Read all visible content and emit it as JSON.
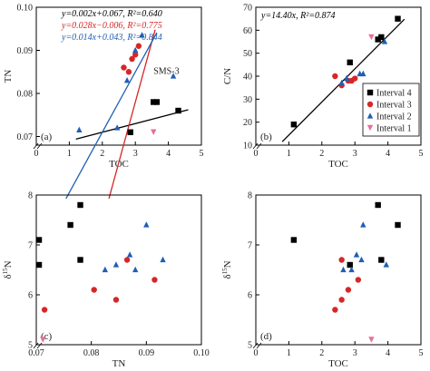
{
  "chart_data": [
    {
      "id": "a",
      "type": "scatter",
      "panel_label": "(a)",
      "xlabel": "TOC",
      "ylabel": "TN",
      "xlim": [
        0,
        5
      ],
      "ylim": [
        0.068,
        0.1
      ],
      "xticks": [
        "0",
        "1",
        "2",
        "3",
        "4",
        "5"
      ],
      "yticks": [
        "0.07",
        "0.08",
        "0.09",
        "0.10"
      ],
      "ytick_values": [
        0.07,
        0.08,
        0.09,
        0.1
      ],
      "annotation": "SMS-3",
      "series": [
        {
          "marker": "square",
          "color": "#000000",
          "x": [
            2.85,
            3.55,
            3.65,
            4.3
          ],
          "y": [
            0.071,
            0.078,
            0.078,
            0.076
          ]
        },
        {
          "marker": "circle",
          "color": "#d62728",
          "x": [
            2.65,
            2.8,
            2.9,
            3.0,
            3.1
          ],
          "y": [
            0.086,
            0.085,
            0.088,
            0.089,
            0.091
          ]
        },
        {
          "marker": "triangle",
          "color": "#1f5fb4",
          "x": [
            1.3,
            2.45,
            2.75,
            3.0,
            3.2,
            4.15
          ],
          "y": [
            0.0715,
            0.072,
            0.083,
            0.09,
            0.0935,
            0.084
          ]
        },
        {
          "marker": "triangle-down",
          "color": "#e76f9a",
          "x": [
            3.55
          ],
          "y": [
            0.071
          ]
        }
      ],
      "fit_lines": [
        {
          "label": "y=0.002x+0.067, R²=0.640",
          "color": "#000000",
          "x": [
            1.2,
            4.6
          ],
          "y": [
            0.0694,
            0.0762
          ]
        },
        {
          "label": "y=0.028x−0.006, R²=0.775",
          "color": "#d62728",
          "x": [
            2.2,
            3.6
          ],
          "y": [
            0.0556,
            0.0948
          ]
        },
        {
          "label": "y=0.014x+0.043, R²=0.844",
          "color": "#1f5fb4",
          "x": [
            0.9,
            3.65
          ],
          "y": [
            0.0556,
            0.0941
          ]
        }
      ]
    },
    {
      "id": "b",
      "type": "scatter",
      "panel_label": "(b)",
      "xlabel": "TOC",
      "ylabel": "C/N",
      "xlim": [
        0,
        5
      ],
      "ylim": [
        10,
        70
      ],
      "xticks": [
        "0",
        "1",
        "2",
        "3",
        "4",
        "5"
      ],
      "yticks": [
        "10",
        "20",
        "30",
        "40",
        "50",
        "60",
        "70"
      ],
      "ytick_values": [
        10,
        20,
        30,
        40,
        50,
        60,
        70
      ],
      "annotation": "y=14.40x, R²=0.874",
      "legend": [
        "Interval 4",
        "Interval 3",
        "Interval 2",
        "Interval 1"
      ],
      "series": [
        {
          "name": "Interval 4",
          "marker": "square",
          "color": "#000000",
          "x": [
            1.15,
            2.85,
            3.7,
            3.8,
            4.3
          ],
          "y": [
            19,
            46,
            56,
            57,
            65
          ]
        },
        {
          "name": "Interval 3",
          "marker": "circle",
          "color": "#d62728",
          "x": [
            2.4,
            2.6,
            2.8,
            2.9,
            3.0
          ],
          "y": [
            40,
            36,
            38,
            38,
            39
          ]
        },
        {
          "name": "Interval 2",
          "marker": "triangle",
          "color": "#1f5fb4",
          "x": [
            2.6,
            2.75,
            3.15,
            3.25,
            3.9
          ],
          "y": [
            37,
            39,
            41,
            41,
            55
          ]
        },
        {
          "name": "Interval 1",
          "marker": "triangle-down",
          "color": "#e76f9a",
          "x": [
            3.5
          ],
          "y": [
            57
          ]
        }
      ],
      "fit_lines": [
        {
          "color": "#000000",
          "x": [
            0.8,
            4.5
          ],
          "y": [
            11.5,
            64.8
          ]
        }
      ]
    },
    {
      "id": "c",
      "type": "scatter",
      "panel_label": "(c)",
      "xlabel": "TN",
      "ylabel": "δ15N",
      "ylabel_superscript": "15",
      "ylabel_letters": [
        "δ",
        "N"
      ],
      "xlim": [
        0.07,
        0.1
      ],
      "ylim": [
        5,
        8
      ],
      "xticks": [
        "0.07",
        "0.08",
        "0.09",
        "0.10"
      ],
      "xtick_values": [
        0.07,
        0.08,
        0.09,
        0.1
      ],
      "yticks": [
        "5",
        "6",
        "7",
        "8"
      ],
      "ytick_values": [
        5,
        6,
        7,
        8
      ],
      "series": [
        {
          "marker": "square",
          "color": "#000000",
          "x": [
            0.0705,
            0.0705,
            0.0762,
            0.078,
            0.078
          ],
          "y": [
            7.1,
            6.6,
            7.4,
            7.8,
            6.7
          ]
        },
        {
          "marker": "circle",
          "color": "#d62728",
          "x": [
            0.0715,
            0.0805,
            0.0845,
            0.0865,
            0.0915
          ],
          "y": [
            5.7,
            6.1,
            5.9,
            6.7,
            6.3
          ]
        },
        {
          "marker": "triangle",
          "color": "#1f5fb4",
          "x": [
            0.0825,
            0.0845,
            0.087,
            0.088,
            0.09,
            0.093
          ],
          "y": [
            6.5,
            6.6,
            6.8,
            6.5,
            7.4,
            6.7
          ]
        },
        {
          "marker": "triangle-down",
          "color": "#e76f9a",
          "x": [
            0.0712
          ],
          "y": [
            5.1
          ]
        }
      ]
    },
    {
      "id": "d",
      "type": "scatter",
      "panel_label": "(d)",
      "xlabel": "TOC",
      "ylabel": "δ15N",
      "ylabel_superscript": "15",
      "ylabel_letters": [
        "δ",
        "N"
      ],
      "xlim": [
        0,
        5
      ],
      "ylim": [
        5,
        8
      ],
      "xticks": [
        "0",
        "1",
        "2",
        "3",
        "4",
        "5"
      ],
      "yticks": [
        "5",
        "6",
        "7",
        "8"
      ],
      "ytick_values": [
        5,
        6,
        7,
        8
      ],
      "series": [
        {
          "marker": "square",
          "color": "#000000",
          "x": [
            1.15,
            2.85,
            3.7,
            3.8,
            4.3
          ],
          "y": [
            7.1,
            6.6,
            7.8,
            6.7,
            7.4
          ]
        },
        {
          "marker": "circle",
          "color": "#d62728",
          "x": [
            2.4,
            2.6,
            2.6,
            2.8,
            3.1
          ],
          "y": [
            5.7,
            6.7,
            5.9,
            6.1,
            6.3
          ]
        },
        {
          "marker": "triangle",
          "color": "#1f5fb4",
          "x": [
            2.65,
            2.9,
            3.05,
            3.2,
            3.25,
            3.95
          ],
          "y": [
            6.5,
            6.5,
            6.8,
            6.7,
            7.4,
            6.6
          ]
        },
        {
          "marker": "triangle-down",
          "color": "#e76f9a",
          "x": [
            3.5
          ],
          "y": [
            5.1
          ]
        }
      ]
    }
  ]
}
